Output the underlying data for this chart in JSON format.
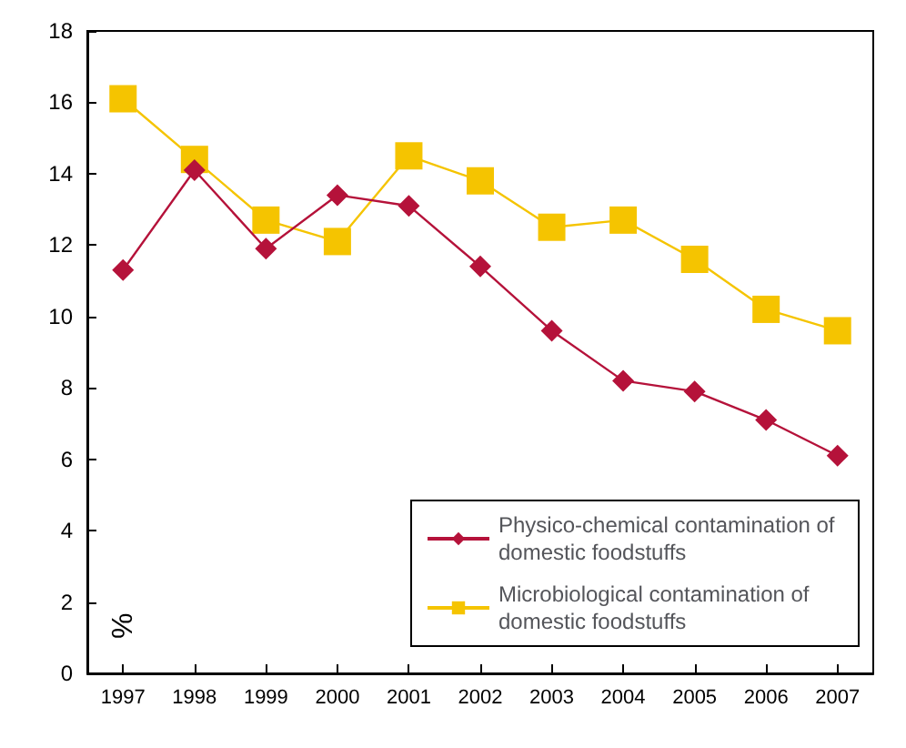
{
  "chart_data": {
    "type": "line",
    "ylabel": "%",
    "categories": [
      "1997",
      "1998",
      "1999",
      "2000",
      "2001",
      "2002",
      "2003",
      "2004",
      "2005",
      "2006",
      "2007"
    ],
    "series": [
      {
        "name": "Physico-chemical contamination of domestic foodstuffs",
        "color": "#b5123a",
        "marker": "diamond",
        "values": [
          11.3,
          14.1,
          11.9,
          13.4,
          13.1,
          11.4,
          9.6,
          8.2,
          7.9,
          7.1,
          6.1
        ]
      },
      {
        "name": "Microbiological contamination of domestic foodstuffs",
        "color": "#f5c400",
        "marker": "square",
        "values": [
          16.1,
          14.4,
          12.7,
          12.1,
          14.5,
          13.8,
          12.5,
          12.7,
          11.6,
          10.2,
          9.6
        ]
      }
    ],
    "ylim": [
      0,
      18
    ],
    "yticks": [
      0,
      2,
      4,
      6,
      8,
      10,
      12,
      14,
      16,
      18
    ],
    "grid": false,
    "legend": "bottom right"
  }
}
